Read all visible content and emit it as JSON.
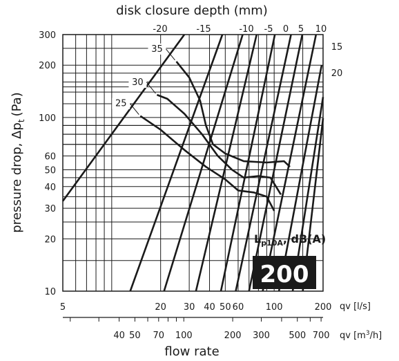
{
  "chart_data": {
    "type": "line",
    "subtitle_top": "disk closure depth (mm)",
    "xlabel": "flow rate",
    "ylabel": "pressure drop, Δp",
    "ylabel_sub": "t",
    "ylabel_unit": "(Pa)",
    "x_unit_primary": "qv [l/s]",
    "x_unit_secondary_prefix": "qv [m",
    "x_unit_secondary_sup": "3",
    "x_unit_secondary_suffix": "/h]",
    "xscale": "log",
    "yscale": "log",
    "xlim": [
      5,
      200
    ],
    "ylim": [
      10,
      300
    ],
    "grid": true,
    "x_ticks_primary": [
      "5",
      "20",
      "30",
      "40",
      "50",
      "60",
      "100",
      "200"
    ],
    "x_tick_values_primary": [
      5,
      20,
      30,
      40,
      50,
      60,
      100,
      200
    ],
    "x_ticks_secondary": [
      "40",
      "50",
      "70",
      "100",
      "200",
      "300",
      "500",
      "700"
    ],
    "x_tick_values_secondary_m3h": [
      40,
      50,
      70,
      100,
      200,
      300,
      500,
      700
    ],
    "y_ticks": [
      "10",
      "20",
      "30",
      "40",
      "50",
      "60",
      "100",
      "200",
      "300"
    ],
    "y_tick_values": [
      10,
      20,
      30,
      40,
      50,
      60,
      100,
      200,
      300
    ],
    "closure_depth_labels": [
      "-20",
      "-15",
      "-10",
      "-5",
      "0",
      "5",
      "10",
      "15",
      "20"
    ],
    "closure_depth_lines": [
      {
        "label": "-20",
        "points": [
          [
            5,
            33
          ],
          [
            28,
            300
          ]
        ]
      },
      {
        "label": "-15",
        "points": [
          [
            13,
            10
          ],
          [
            48,
            300
          ]
        ]
      },
      {
        "label": "-15b",
        "points": [
          [
            21,
            10
          ],
          [
            64,
            300
          ]
        ]
      },
      {
        "label": "-10",
        "points": [
          [
            33,
            10
          ],
          [
            78,
            300
          ]
        ]
      },
      {
        "label": "-10b",
        "points": [
          [
            47,
            10
          ],
          [
            101,
            300
          ]
        ]
      },
      {
        "label": "-5",
        "points": [
          [
            58,
            10
          ],
          [
            127,
            300
          ]
        ]
      },
      {
        "label": "0",
        "points": [
          [
            70,
            10
          ],
          [
            149,
            300
          ]
        ]
      },
      {
        "label": "5",
        "points": [
          [
            85,
            10
          ],
          [
            181,
            300
          ]
        ]
      },
      {
        "label": "10",
        "points": [
          [
            107,
            10
          ],
          [
            196,
            200
          ]
        ]
      },
      {
        "label": "15",
        "points": [
          [
            130,
            10
          ],
          [
            200,
            131
          ]
        ]
      },
      {
        "label": "20",
        "points": [
          [
            150,
            10
          ],
          [
            200,
            99
          ]
        ]
      }
    ],
    "sound_curves_label": "L",
    "sound_curves_label_sub": "p10A",
    "sound_curves_label_unit": ", dB(A)",
    "sound_curves": [
      {
        "label": "35",
        "points": [
          [
            25,
            210
          ],
          [
            30,
            170
          ],
          [
            35,
            125
          ],
          [
            38,
            90
          ],
          [
            42,
            70
          ],
          [
            50,
            62
          ],
          [
            65,
            56
          ],
          [
            90,
            55
          ],
          [
            115,
            56
          ],
          [
            125,
            52
          ]
        ]
      },
      {
        "label": "30",
        "points": [
          [
            19,
            135
          ],
          [
            22,
            128
          ],
          [
            28,
            105
          ],
          [
            36,
            80
          ],
          [
            45,
            60
          ],
          [
            55,
            50
          ],
          [
            65,
            45
          ],
          [
            80,
            46
          ],
          [
            95,
            45
          ],
          [
            110,
            36
          ]
        ]
      },
      {
        "label": "25",
        "points": [
          [
            15,
            102
          ],
          [
            20,
            85
          ],
          [
            28,
            65
          ],
          [
            38,
            52
          ],
          [
            50,
            44
          ],
          [
            60,
            38
          ],
          [
            75,
            37
          ],
          [
            90,
            35
          ],
          [
            100,
            29
          ]
        ]
      }
    ],
    "size_badge": "200"
  }
}
